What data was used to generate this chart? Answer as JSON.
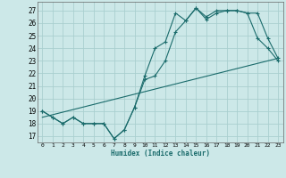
{
  "title": "",
  "xlabel": "Humidex (Indice chaleur)",
  "bg_color": "#cce8e8",
  "grid_color": "#aacfcf",
  "line_color": "#1a6b6b",
  "xlim": [
    -0.5,
    23.5
  ],
  "ylim": [
    16.5,
    27.7
  ],
  "xticks": [
    0,
    1,
    2,
    3,
    4,
    5,
    6,
    7,
    8,
    9,
    10,
    11,
    12,
    13,
    14,
    15,
    16,
    17,
    18,
    19,
    20,
    21,
    22,
    23
  ],
  "yticks": [
    17,
    18,
    19,
    20,
    21,
    22,
    23,
    24,
    25,
    26,
    27
  ],
  "line1_x": [
    0,
    1,
    2,
    3,
    4,
    5,
    6,
    7,
    8,
    9,
    10,
    11,
    12,
    13,
    14,
    15,
    16,
    17,
    18,
    19,
    20,
    21,
    22,
    23
  ],
  "line1_y": [
    19.0,
    18.5,
    18.0,
    18.5,
    18.0,
    18.0,
    18.0,
    16.8,
    17.5,
    19.3,
    21.8,
    24.0,
    24.5,
    26.8,
    26.2,
    27.2,
    26.3,
    26.8,
    27.0,
    27.0,
    26.8,
    24.8,
    24.0,
    23.0
  ],
  "line2_x": [
    0,
    1,
    2,
    3,
    4,
    5,
    6,
    7,
    8,
    9,
    10,
    11,
    12,
    13,
    14,
    15,
    16,
    17,
    18,
    19,
    20,
    21,
    22,
    23
  ],
  "line2_y": [
    19.0,
    18.5,
    18.0,
    18.5,
    18.0,
    18.0,
    18.0,
    16.8,
    17.5,
    19.3,
    21.5,
    21.8,
    23.0,
    25.3,
    26.2,
    27.2,
    26.5,
    27.0,
    27.0,
    27.0,
    26.8,
    26.8,
    24.8,
    23.2
  ],
  "line3_x": [
    0,
    23
  ],
  "line3_y": [
    18.5,
    23.2
  ]
}
